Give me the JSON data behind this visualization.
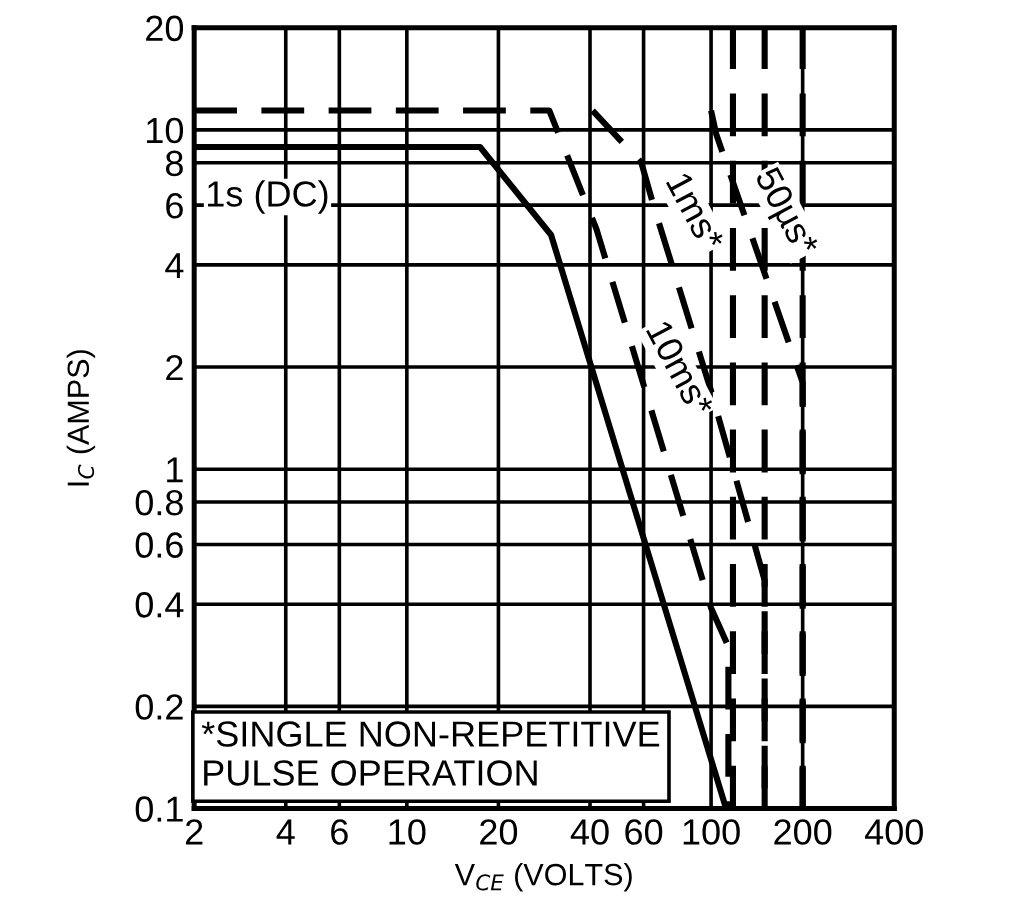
{
  "chart_data": {
    "type": "line",
    "xlabel": "V$_{CE}$ (VOLTS)",
    "ylabel": "I$_{C}$ (AMPS)",
    "log": "xy",
    "xlim": [
      2,
      400
    ],
    "xticks": [
      2,
      4,
      6,
      10,
      20,
      40,
      60,
      100,
      200,
      400
    ],
    "ylim": [
      0.1,
      20
    ],
    "yticks": [
      0.1,
      0.2,
      0.4,
      0.6,
      0.8,
      1,
      2,
      4,
      6,
      8,
      10,
      20
    ],
    "grid": true,
    "marker": "none",
    "series": [
      {
        "name": "1s (DC)",
        "color": "#000000",
        "line_style": "solid",
        "x": [
          2,
          17.4,
          29.8,
          112
        ],
        "values": [
          8.9,
          8.9,
          4.9,
          0.1
        ]
      },
      {
        "name": "10ms*",
        "color": "#000000",
        "line_style": "dashed",
        "x": [
          2,
          29.4,
          42,
          65,
          100,
          114,
          114
        ],
        "values": [
          11.4,
          11.4,
          5.1,
          1.4,
          0.39,
          0.3,
          0.1
        ]
      },
      {
        "name": "1ms*",
        "color": "#000000",
        "line_style": "dashed",
        "x": [
          40.8,
          59,
          65,
          100,
          150,
          150
        ],
        "values": [
          11.4,
          8.0,
          5.9,
          1.7,
          0.47,
          0.1
        ]
      },
      {
        "name": "50µs*",
        "color": "#000000",
        "line_style": "dashed",
        "x": [
          100,
          104,
          200,
          200
        ],
        "values": [
          11.4,
          9.7,
          1.8,
          0.1
        ]
      }
    ],
    "ref_lines": [
      {
        "axis": "x",
        "value": 118,
        "color": "#000000",
        "line_style": "dashed"
      },
      {
        "axis": "x",
        "value": 150,
        "color": "#000000",
        "line_style": "dashed"
      },
      {
        "axis": "x",
        "value": 200,
        "color": "#000000",
        "line_style": "dashed"
      }
    ],
    "annotations": [
      "*SINGLE NON-REPETITIVE\nPULSE OPERATION"
    ]
  }
}
